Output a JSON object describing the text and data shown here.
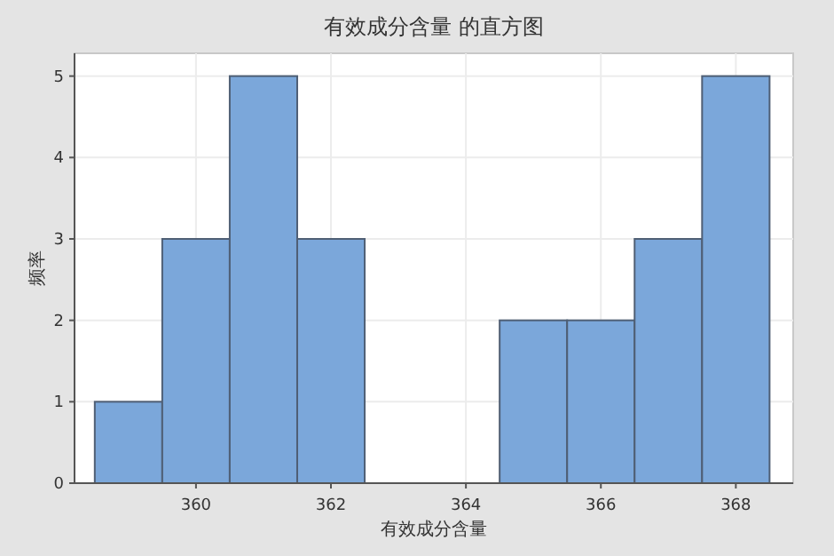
{
  "chart_data": {
    "type": "histogram",
    "title": "有效成分含量 的直方图",
    "xlabel": "有效成分含量",
    "ylabel": "频率",
    "bins": [
      358.5,
      359.5,
      360.5,
      361.5,
      362.5,
      363.5,
      364.5,
      365.5,
      366.5,
      367.5,
      368.5
    ],
    "values": [
      1,
      3,
      5,
      3,
      0,
      0,
      2,
      2,
      3,
      5
    ],
    "color": "#7ba7da",
    "xlim": [
      358.2,
      368.85
    ],
    "xticks": [
      360,
      362,
      364,
      366,
      368
    ],
    "ylim": [
      0,
      5.28
    ],
    "yticks": [
      0,
      1,
      2,
      3,
      4,
      5
    ],
    "grid": true
  }
}
